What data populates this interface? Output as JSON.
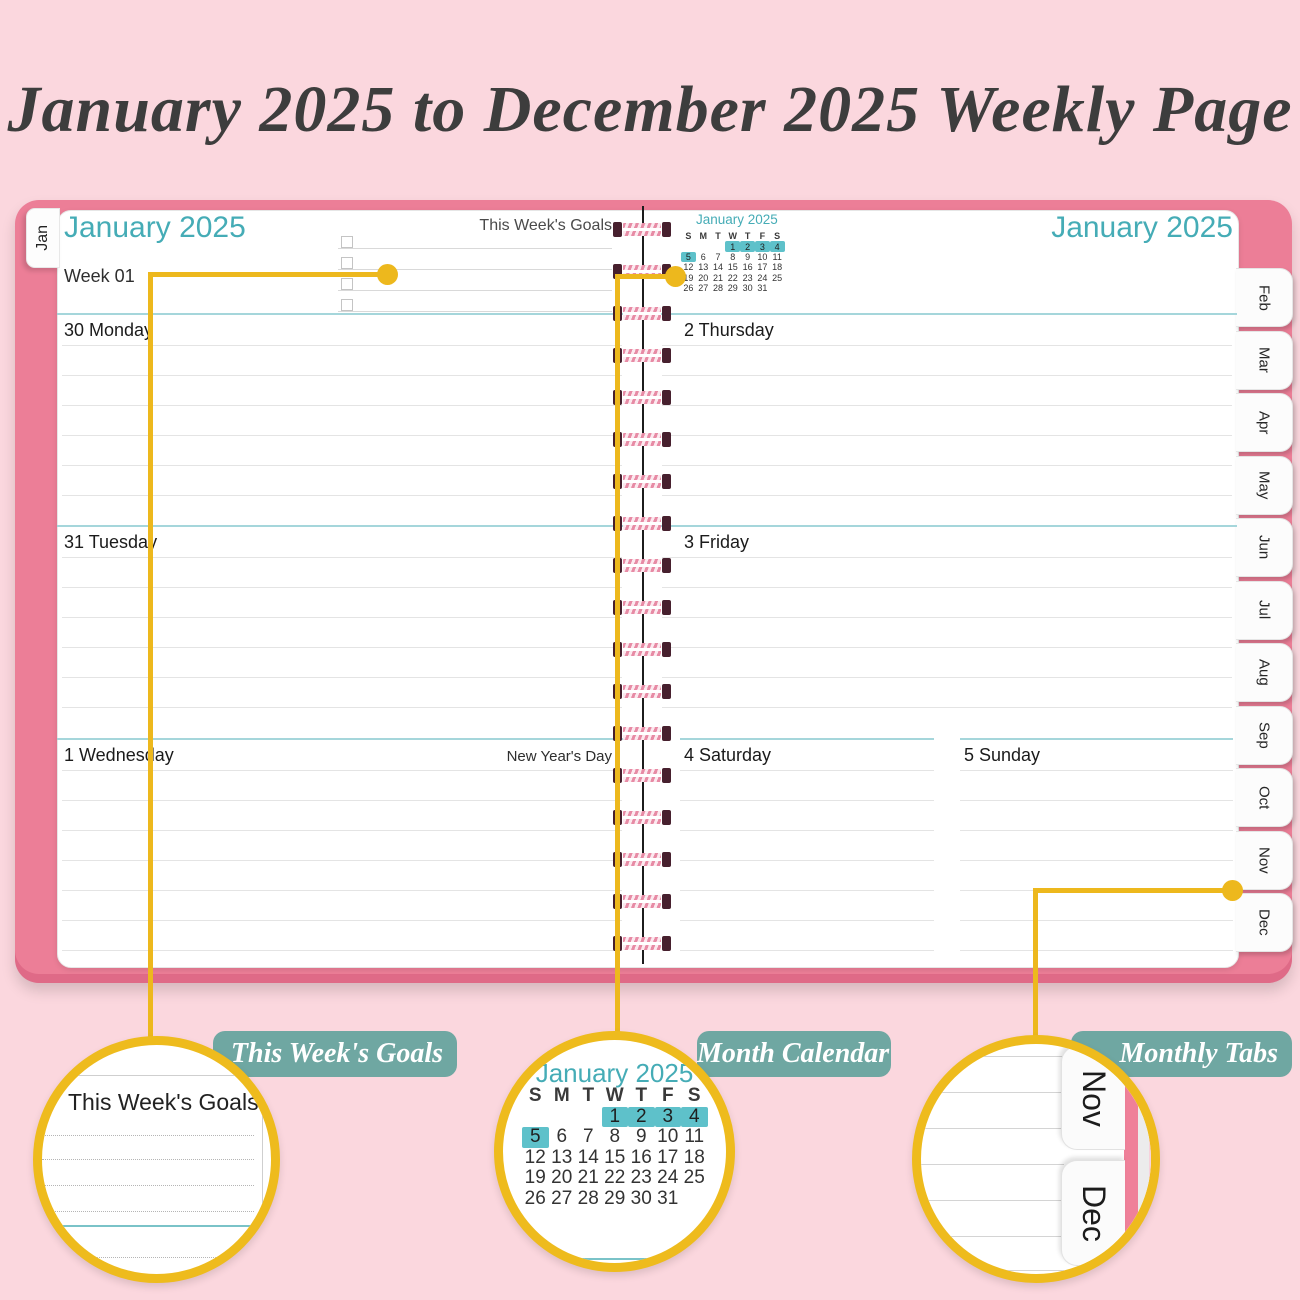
{
  "title": "January 2025 to December 2025 Weekly Page",
  "planner": {
    "left_page": {
      "tab": "Jan",
      "month_header": "January 2025",
      "week_label": "Week 01",
      "goals_label": "This Week's Goals",
      "goal_lines": 4,
      "days": [
        {
          "label": "30 Monday",
          "note": ""
        },
        {
          "label": "31 Tuesday",
          "note": ""
        },
        {
          "label": "1 Wednesday",
          "note": "New Year's Day"
        }
      ]
    },
    "right_page": {
      "month_header": "January 2025",
      "mini_calendar": {
        "title": "January 2025",
        "weekdays": [
          "S",
          "M",
          "T",
          "W",
          "T",
          "F",
          "S"
        ],
        "weeks": [
          [
            "",
            "",
            "",
            "1",
            "2",
            "3",
            "4"
          ],
          [
            "5",
            "6",
            "7",
            "8",
            "9",
            "10",
            "11"
          ],
          [
            "12",
            "13",
            "14",
            "15",
            "16",
            "17",
            "18"
          ],
          [
            "19",
            "20",
            "21",
            "22",
            "23",
            "24",
            "25"
          ],
          [
            "26",
            "27",
            "28",
            "29",
            "30",
            "31",
            ""
          ]
        ],
        "highlighted_days": [
          "1",
          "2",
          "3",
          "4",
          "5"
        ]
      },
      "days": [
        {
          "label": "2 Thursday",
          "note": ""
        },
        {
          "label": "3 Friday",
          "note": ""
        },
        {
          "label": "4 Saturday",
          "note": ""
        },
        {
          "label": "5 Sunday",
          "note": ""
        }
      ]
    },
    "month_tabs": [
      "Feb",
      "Mar",
      "Apr",
      "May",
      "Jun",
      "Jul",
      "Aug",
      "Sep",
      "Oct",
      "Nov",
      "Dec"
    ]
  },
  "callouts": {
    "goals": {
      "label": "This Week's Goals",
      "heading": "This Week's Goals"
    },
    "calendar": {
      "label": "Month Calendar"
    },
    "tabs": {
      "label": "Monthly Tabs",
      "tab_names": [
        "Nov",
        "Dec"
      ]
    }
  },
  "colors": {
    "background_pink": "#fbd7de",
    "cover_pink": "#ec7e97",
    "teal_text": "#45acb6",
    "calendar_highlight": "#5ec1ca",
    "label_teal": "#6fa7a2",
    "callout_yellow": "#edb81d"
  }
}
